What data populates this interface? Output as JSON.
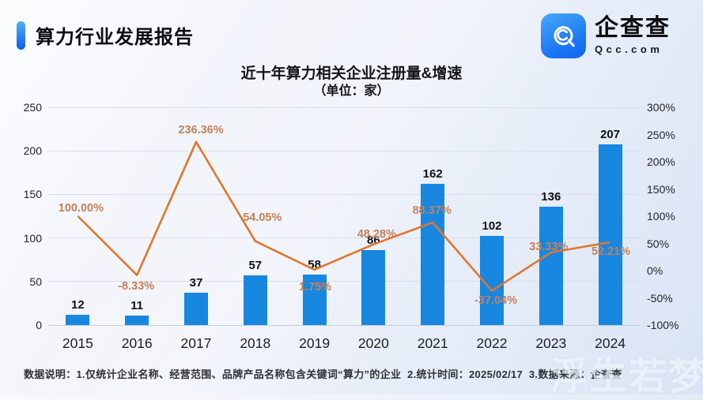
{
  "header": {
    "title": "算力行业发展报告"
  },
  "logo": {
    "name": "企查查",
    "domain": "Qcc.com"
  },
  "chart_data": {
    "type": "bar+line",
    "title": "近十年算力相关企业注册量&增速",
    "subtitle": "（单位：家）",
    "categories": [
      "2015",
      "2016",
      "2017",
      "2018",
      "2019",
      "2020",
      "2021",
      "2022",
      "2023",
      "2024"
    ],
    "series": [
      {
        "name": "注册量",
        "type": "bar",
        "axis": "left",
        "color": "#1787e0",
        "values": [
          12,
          11,
          37,
          57,
          58,
          86,
          162,
          102,
          136,
          207
        ]
      },
      {
        "name": "增速",
        "type": "line",
        "axis": "right",
        "color": "#e0762d",
        "values": [
          100.0,
          -8.33,
          236.36,
          54.05,
          1.75,
          48.28,
          88.37,
          -37.04,
          33.33,
          52.21
        ],
        "labels": [
          "100.00%",
          "-8.33%",
          "236.36%",
          "54.05%",
          "1.75%",
          "48.28%",
          "88.37%",
          "-37.04%",
          "33.33%",
          "52.21%"
        ]
      }
    ],
    "left_axis": {
      "min": 0,
      "max": 250,
      "ticks": [
        0,
        50,
        100,
        150,
        200,
        250
      ]
    },
    "right_axis": {
      "min": -100,
      "max": 300,
      "ticks": [
        "-100%",
        "-50%",
        "0%",
        "50%",
        "100%",
        "150%",
        "200%",
        "250%",
        "300%"
      ]
    },
    "grid": true,
    "legend": "none",
    "bar_value_labels": [
      12,
      11,
      37,
      57,
      58,
      86,
      162,
      102,
      136,
      207
    ]
  },
  "footer": {
    "note": "数据说明：1.仅统计企业名称、经营范围、品牌产品名称包含关键词“算力”的企业  2.统计时间：2025/02/17  3.数据来源：企查查"
  },
  "watermark": {
    "text": "浮生若梦"
  }
}
